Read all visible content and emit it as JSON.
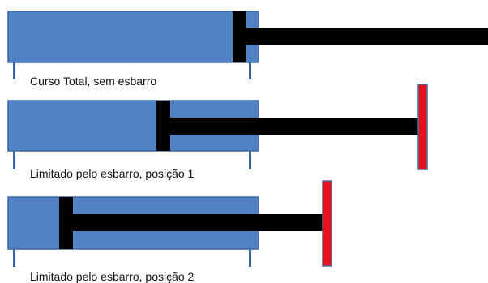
{
  "colors": {
    "cylinder_fill": "#5082c4",
    "cylinder_stroke": "#3b67a3",
    "rod": "#000000",
    "stop": "#e8101c",
    "stop_stroke": "#4a6fa0",
    "foot": "#3b67a3"
  },
  "diagrams": [
    {
      "caption": "Curso Total, sem esbarro"
    },
    {
      "caption": "Limitado pelo esbarro, posição 1"
    },
    {
      "caption": "Limitado pelo esbarro, posição 2"
    }
  ]
}
